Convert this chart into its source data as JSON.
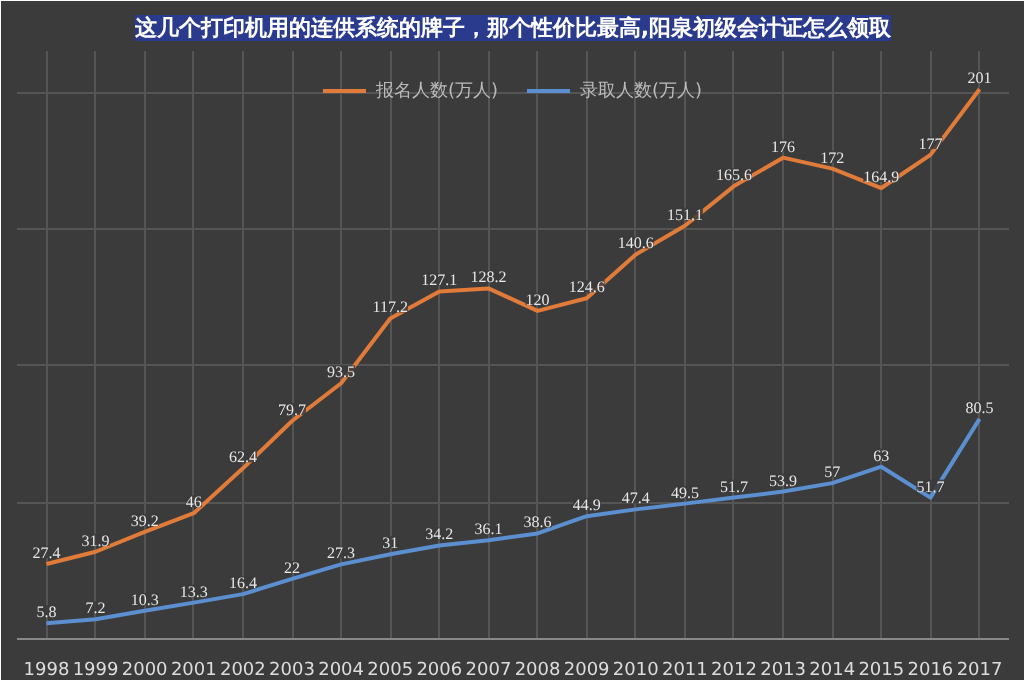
{
  "chart_data": {
    "type": "line",
    "title": "这几个打印机用的连供系统的牌子，那个性价比最高,阳泉初级会计证怎么领取",
    "categories": [
      "1998",
      "1999",
      "2000",
      "2001",
      "2002",
      "2003",
      "2004",
      "2005",
      "2006",
      "2007",
      "2008",
      "2009",
      "2010",
      "2011",
      "2012",
      "2013",
      "2014",
      "2015",
      "2016",
      "2017"
    ],
    "series": [
      {
        "name": "报名人数(万人)",
        "color": "#e07b39",
        "values": [
          27.4,
          31.9,
          39.2,
          46,
          62.4,
          79.7,
          93.5,
          117.2,
          127.1,
          128.2,
          120,
          124.6,
          140.6,
          151.1,
          165.6,
          176,
          172,
          164.9,
          177,
          201
        ]
      },
      {
        "name": "录取人数(万人)",
        "color": "#5b8fd0",
        "values": [
          5.8,
          7.2,
          10.3,
          13.3,
          16.4,
          22,
          27.3,
          31,
          34.2,
          36.1,
          38.6,
          44.9,
          47.4,
          49.5,
          51.7,
          53.9,
          57,
          63,
          51.7,
          80.5
        ]
      }
    ],
    "ylim": [
      0,
      215
    ],
    "tick_labels": "x",
    "data_labels": true,
    "grid": true,
    "legend": "top",
    "marker": "none",
    "line_style": "solid"
  }
}
